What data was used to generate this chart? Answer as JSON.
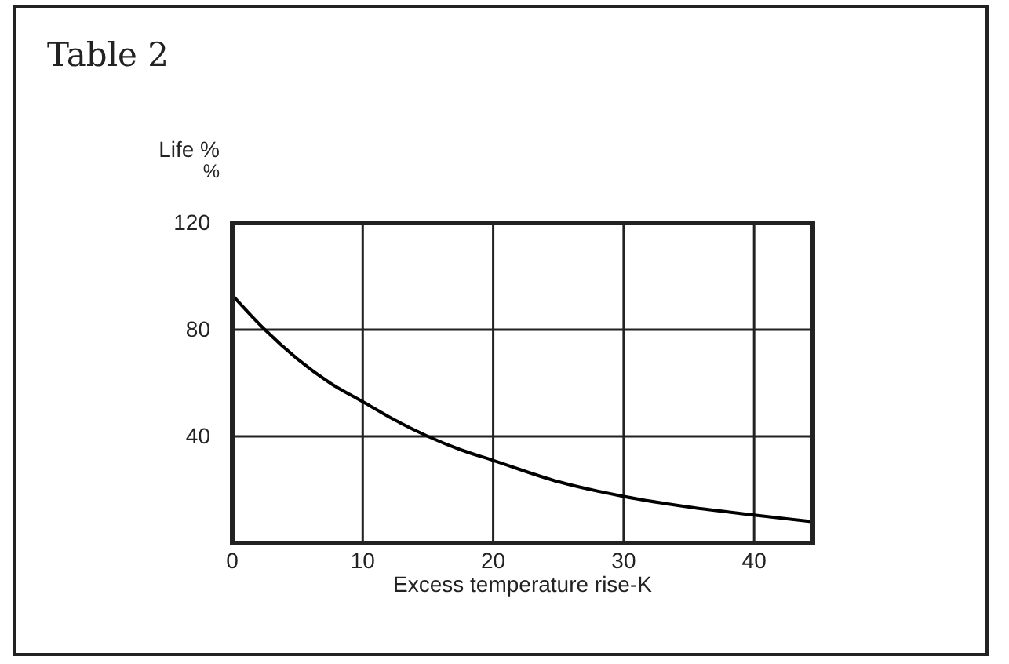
{
  "chart_data": {
    "type": "line",
    "title": "Table 2",
    "xlabel": "Excess temperature rise-K",
    "ylabel": "Life %\n%",
    "x": [
      0,
      2.5,
      5,
      7.5,
      10,
      12.5,
      15,
      17.5,
      20,
      25,
      30,
      35,
      40,
      44.5
    ],
    "series": [
      {
        "color": "#000000",
        "values": [
          93,
          80,
          69,
          60,
          53,
          46,
          40,
          35,
          31,
          23,
          17.5,
          13.5,
          10.5,
          8
        ]
      }
    ],
    "xlim": [
      0,
      44.5
    ],
    "xticks": [
      0,
      10,
      20,
      30,
      40
    ],
    "ylim": [
      0,
      120
    ],
    "yticks": [
      40,
      80,
      120
    ],
    "grid": true,
    "marker": "none",
    "line_style": "solid"
  }
}
